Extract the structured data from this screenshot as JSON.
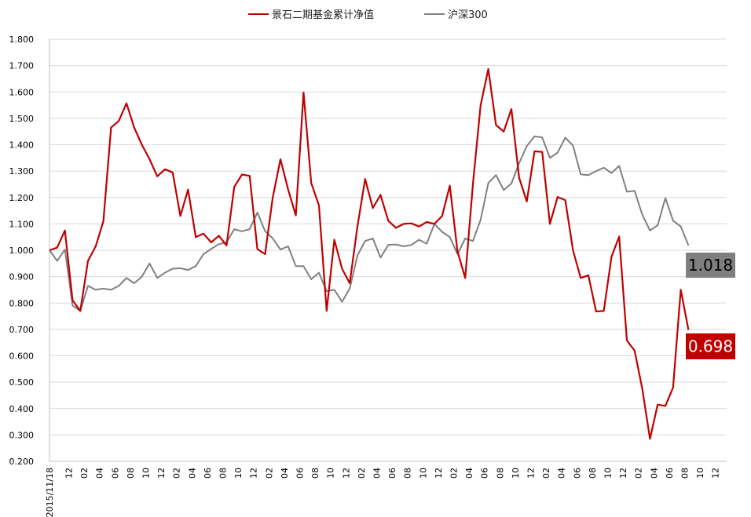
{
  "chart_data": {
    "type": "line",
    "title": "",
    "xlabel": "",
    "ylabel": "",
    "ylim": [
      0.2,
      1.8
    ],
    "y_ticks": [
      "0.200",
      "0.300",
      "0.400",
      "0.500",
      "0.600",
      "0.700",
      "0.800",
      "0.900",
      "1.000",
      "1.100",
      "1.200",
      "1.300",
      "1.400",
      "1.500",
      "1.600",
      "1.700",
      "1.800"
    ],
    "x_ticks": [
      "2015/11/18",
      "12",
      "02",
      "04",
      "06",
      "08",
      "10",
      "12",
      "02",
      "04",
      "06",
      "08",
      "10",
      "12",
      "02",
      "04",
      "06",
      "08",
      "10",
      "12",
      "02",
      "04",
      "06",
      "08",
      "10",
      "12",
      "02",
      "04",
      "06",
      "08",
      "10",
      "12",
      "02",
      "04",
      "06",
      "08",
      "10",
      "12",
      "02",
      "04",
      "06",
      "08",
      "10",
      "12"
    ],
    "grid": "horizontal",
    "legend_position": "top",
    "series": [
      {
        "name": "景石二期基金累计净值",
        "color": "#c00000",
        "values": [
          1.0,
          1.01,
          1.075,
          0.81,
          0.77,
          0.96,
          1.015,
          1.11,
          1.465,
          1.49,
          1.557,
          1.465,
          1.4,
          1.345,
          1.28,
          1.307,
          1.295,
          1.13,
          1.23,
          1.05,
          1.063,
          1.03,
          1.055,
          1.018,
          1.24,
          1.287,
          1.282,
          1.005,
          0.985,
          1.2,
          1.345,
          1.23,
          1.132,
          1.598,
          1.255,
          1.17,
          0.77,
          1.04,
          0.93,
          0.875,
          1.09,
          1.27,
          1.16,
          1.21,
          1.112,
          1.085,
          1.1,
          1.102,
          1.09,
          1.107,
          1.1,
          1.13,
          1.245,
          0.995,
          0.895,
          1.25,
          1.55,
          1.687,
          1.475,
          1.45,
          1.535,
          1.275,
          1.185,
          1.375,
          1.373,
          1.1,
          1.202,
          1.19,
          1.0,
          0.895,
          0.905,
          0.768,
          0.77,
          0.975,
          1.052,
          0.658,
          0.62,
          0.475,
          0.285,
          0.415,
          0.41,
          0.48,
          0.85,
          0.698
        ]
      },
      {
        "name": "沪深300",
        "color": "#808080",
        "values": [
          1.0,
          0.96,
          1.003,
          0.79,
          0.77,
          0.865,
          0.85,
          0.855,
          0.85,
          0.865,
          0.895,
          0.875,
          0.9,
          0.95,
          0.895,
          0.915,
          0.93,
          0.932,
          0.925,
          0.94,
          0.985,
          1.005,
          1.023,
          1.03,
          1.08,
          1.072,
          1.08,
          1.143,
          1.073,
          1.045,
          1.003,
          1.015,
          0.94,
          0.94,
          0.89,
          0.915,
          0.845,
          0.85,
          0.805,
          0.855,
          0.98,
          1.035,
          1.045,
          0.972,
          1.02,
          1.022,
          1.015,
          1.02,
          1.04,
          1.025,
          1.1,
          1.07,
          1.05,
          0.985,
          1.045,
          1.035,
          1.115,
          1.255,
          1.285,
          1.228,
          1.253,
          1.33,
          1.395,
          1.432,
          1.428,
          1.35,
          1.37,
          1.427,
          1.397,
          1.288,
          1.285,
          1.3,
          1.313,
          1.293,
          1.32,
          1.222,
          1.225,
          1.135,
          1.075,
          1.095,
          1.198,
          1.112,
          1.09,
          1.018
        ]
      }
    ],
    "end_labels": [
      {
        "text": "1.018",
        "bg": "#7f7f7f",
        "text_color": "#000000",
        "value": 1.018
      },
      {
        "text": "0.698",
        "bg": "#c00000",
        "text_color": "#ffffff",
        "value": 0.698
      }
    ]
  }
}
